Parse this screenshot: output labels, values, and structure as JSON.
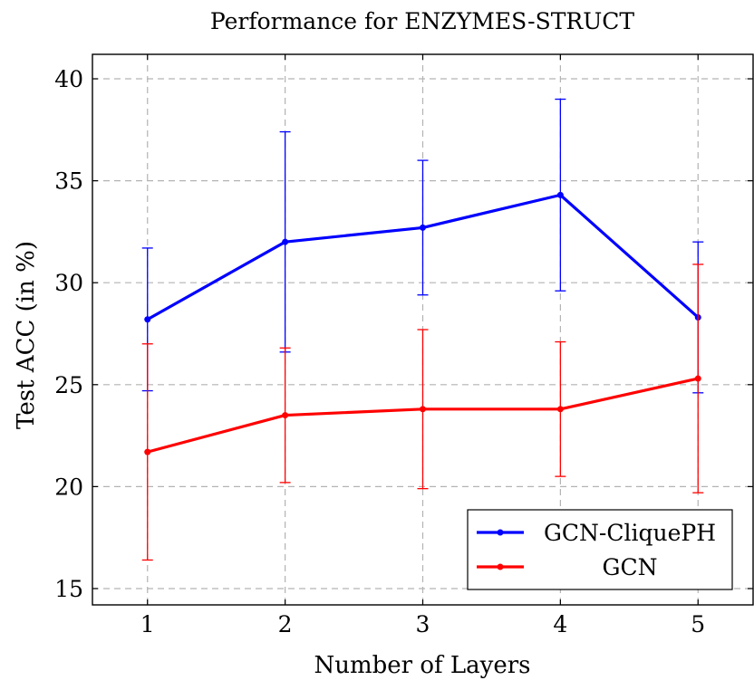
{
  "chart_data": {
    "type": "line",
    "title": "Performance for ENZYMES-STRUCT",
    "xlabel": "Number of Layers",
    "ylabel": "Test ACC (in %)",
    "x": [
      1,
      2,
      3,
      4,
      5
    ],
    "xticks": [
      "1",
      "2",
      "3",
      "4",
      "5"
    ],
    "yticks": [
      "15",
      "20",
      "25",
      "30",
      "35",
      "40"
    ],
    "xlim": [
      0.6,
      5.4
    ],
    "ylim": [
      14.2,
      41.2
    ],
    "grid": true,
    "legend_position": "bottom-right",
    "series": [
      {
        "name": "GCN-CliquePH",
        "color": "#0000ff",
        "values": [
          28.2,
          32.0,
          32.7,
          34.3,
          28.3
        ],
        "error_low": [
          24.7,
          26.6,
          29.4,
          29.6,
          24.6
        ],
        "error_high": [
          31.7,
          37.4,
          36.0,
          39.0,
          32.0
        ]
      },
      {
        "name": "GCN",
        "color": "#ff0000",
        "values": [
          21.7,
          23.5,
          23.8,
          23.8,
          25.3
        ],
        "error_low": [
          16.4,
          20.2,
          19.9,
          20.5,
          19.7
        ],
        "error_high": [
          27.0,
          26.8,
          27.7,
          27.1,
          30.9
        ]
      }
    ]
  }
}
